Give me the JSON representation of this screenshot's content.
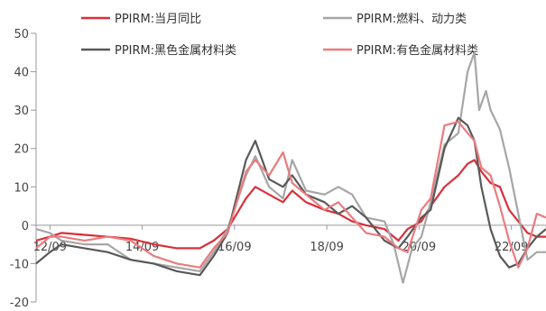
{
  "chart_data": {
    "type": "line",
    "title": "",
    "xlabel": "",
    "ylabel": "",
    "ylim": [
      -20,
      50
    ],
    "y_ticks": [
      50,
      40,
      30,
      20,
      10,
      0,
      -10,
      -20
    ],
    "y_tick_labels": [
      "50",
      "40",
      "30",
      "20",
      "10",
      "0",
      "-10",
      "-20"
    ],
    "x_tick_labels": [
      "12/09",
      "14/09",
      "16/09",
      "18/09",
      "20/09",
      "22/09"
    ],
    "x_tick_positions": [
      2012.75,
      2014.75,
      2016.75,
      2018.75,
      2020.75,
      2022.75
    ],
    "xlim": [
      2012.45,
      2023.5
    ],
    "grid": false,
    "legend_placement": "top",
    "series": [
      {
        "name": "PPIRM:当月同比",
        "color": "#d9303a",
        "points": [
          [
            2012.45,
            -4
          ],
          [
            2012.75,
            -3
          ],
          [
            2013.0,
            -2
          ],
          [
            2013.5,
            -2.5
          ],
          [
            2014.0,
            -3
          ],
          [
            2014.5,
            -3.5
          ],
          [
            2015.0,
            -5
          ],
          [
            2015.5,
            -6
          ],
          [
            2016.0,
            -6
          ],
          [
            2016.3,
            -4
          ],
          [
            2016.6,
            -1
          ],
          [
            2017.0,
            7
          ],
          [
            2017.2,
            10
          ],
          [
            2017.5,
            8
          ],
          [
            2017.8,
            6
          ],
          [
            2018.0,
            9
          ],
          [
            2018.3,
            6
          ],
          [
            2018.7,
            4
          ],
          [
            2019.0,
            3
          ],
          [
            2019.3,
            1
          ],
          [
            2019.6,
            0
          ],
          [
            2020.0,
            -1
          ],
          [
            2020.3,
            -4
          ],
          [
            2020.5,
            -1
          ],
          [
            2020.8,
            1
          ],
          [
            2021.0,
            5
          ],
          [
            2021.3,
            10
          ],
          [
            2021.6,
            13
          ],
          [
            2021.8,
            16
          ],
          [
            2021.95,
            17
          ],
          [
            2022.1,
            14
          ],
          [
            2022.3,
            11
          ],
          [
            2022.5,
            10
          ],
          [
            2022.7,
            4
          ],
          [
            2022.9,
            1
          ],
          [
            2023.1,
            -2
          ],
          [
            2023.3,
            -3
          ],
          [
            2023.5,
            -3
          ]
        ]
      },
      {
        "name": "PPIRM:燃料、动力类",
        "color": "#a6a6a6",
        "points": [
          [
            2012.45,
            -1
          ],
          [
            2012.75,
            -2
          ],
          [
            2013.0,
            -4
          ],
          [
            2013.5,
            -5
          ],
          [
            2014.0,
            -5
          ],
          [
            2014.5,
            -9
          ],
          [
            2015.0,
            -10
          ],
          [
            2015.5,
            -11
          ],
          [
            2016.0,
            -12
          ],
          [
            2016.3,
            -7
          ],
          [
            2016.6,
            -1
          ],
          [
            2017.0,
            13
          ],
          [
            2017.2,
            18
          ],
          [
            2017.5,
            10
          ],
          [
            2017.8,
            7
          ],
          [
            2018.0,
            17
          ],
          [
            2018.3,
            9
          ],
          [
            2018.7,
            8
          ],
          [
            2019.0,
            10
          ],
          [
            2019.3,
            8
          ],
          [
            2019.6,
            2
          ],
          [
            2020.0,
            1
          ],
          [
            2020.2,
            -5
          ],
          [
            2020.4,
            -15
          ],
          [
            2020.6,
            -6
          ],
          [
            2020.8,
            -3
          ],
          [
            2021.0,
            6
          ],
          [
            2021.3,
            21
          ],
          [
            2021.6,
            24
          ],
          [
            2021.8,
            40
          ],
          [
            2021.95,
            45
          ],
          [
            2022.05,
            30
          ],
          [
            2022.2,
            35
          ],
          [
            2022.3,
            30
          ],
          [
            2022.5,
            25
          ],
          [
            2022.7,
            15
          ],
          [
            2022.9,
            3
          ],
          [
            2023.1,
            -9
          ],
          [
            2023.3,
            -7
          ],
          [
            2023.5,
            -7
          ]
        ]
      },
      {
        "name": "PPIRM:黑色金属材料类",
        "color": "#595959",
        "points": [
          [
            2012.45,
            -10
          ],
          [
            2012.75,
            -7
          ],
          [
            2013.0,
            -5
          ],
          [
            2013.5,
            -6
          ],
          [
            2014.0,
            -7
          ],
          [
            2014.5,
            -9
          ],
          [
            2015.0,
            -10
          ],
          [
            2015.5,
            -12
          ],
          [
            2016.0,
            -13
          ],
          [
            2016.3,
            -8
          ],
          [
            2016.6,
            -2
          ],
          [
            2017.0,
            17
          ],
          [
            2017.2,
            22
          ],
          [
            2017.5,
            12
          ],
          [
            2017.8,
            10
          ],
          [
            2018.0,
            13
          ],
          [
            2018.3,
            8
          ],
          [
            2018.7,
            6
          ],
          [
            2019.0,
            3
          ],
          [
            2019.3,
            5
          ],
          [
            2019.6,
            2
          ],
          [
            2020.0,
            -4
          ],
          [
            2020.3,
            -6
          ],
          [
            2020.5,
            -3
          ],
          [
            2020.8,
            2
          ],
          [
            2021.0,
            4
          ],
          [
            2021.3,
            20
          ],
          [
            2021.6,
            28
          ],
          [
            2021.8,
            26
          ],
          [
            2021.95,
            22
          ],
          [
            2022.1,
            10
          ],
          [
            2022.3,
            -1
          ],
          [
            2022.5,
            -8
          ],
          [
            2022.7,
            -11
          ],
          [
            2022.9,
            -10
          ],
          [
            2023.1,
            -6
          ],
          [
            2023.3,
            -3
          ],
          [
            2023.5,
            -1
          ]
        ]
      },
      {
        "name": "PPIRM:有色金属材料类",
        "color": "#eb7b7f",
        "points": [
          [
            2012.45,
            -6
          ],
          [
            2012.75,
            -3
          ],
          [
            2013.0,
            -3
          ],
          [
            2013.5,
            -4
          ],
          [
            2014.0,
            -3
          ],
          [
            2014.5,
            -4
          ],
          [
            2015.0,
            -8
          ],
          [
            2015.5,
            -10
          ],
          [
            2016.0,
            -11
          ],
          [
            2016.3,
            -6
          ],
          [
            2016.6,
            -2
          ],
          [
            2017.0,
            14
          ],
          [
            2017.2,
            17
          ],
          [
            2017.5,
            13
          ],
          [
            2017.8,
            19
          ],
          [
            2018.0,
            11
          ],
          [
            2018.3,
            8
          ],
          [
            2018.7,
            4
          ],
          [
            2019.0,
            6
          ],
          [
            2019.3,
            2
          ],
          [
            2019.6,
            -2
          ],
          [
            2020.0,
            -3
          ],
          [
            2020.3,
            -6
          ],
          [
            2020.5,
            -7
          ],
          [
            2020.8,
            4
          ],
          [
            2021.0,
            7
          ],
          [
            2021.3,
            26
          ],
          [
            2021.6,
            27
          ],
          [
            2021.8,
            24
          ],
          [
            2021.95,
            22
          ],
          [
            2022.1,
            15
          ],
          [
            2022.3,
            13
          ],
          [
            2022.5,
            5
          ],
          [
            2022.7,
            -4
          ],
          [
            2022.9,
            -11
          ],
          [
            2023.1,
            -6
          ],
          [
            2023.3,
            3
          ],
          [
            2023.5,
            2
          ]
        ]
      }
    ]
  }
}
